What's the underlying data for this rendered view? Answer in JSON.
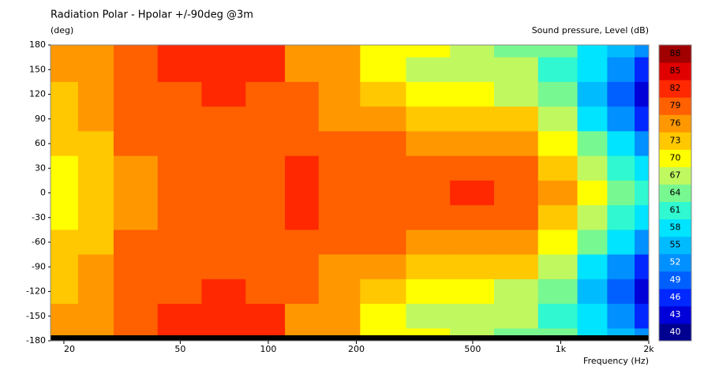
{
  "chart_data": {
    "type": "contour",
    "title": "Radiation Polar - Hpolar +/-90deg @3m",
    "ylabel": "(deg)",
    "xlabel": "Frequency  (Hz)",
    "colorbar_label": "Sound pressure, Level  (dB)",
    "log_x": true,
    "xlim": [
      18,
      2000
    ],
    "ylim": [
      -180,
      180
    ],
    "xticks": [
      20,
      50,
      100,
      200,
      500,
      {
        "value": 1000,
        "label": "1k"
      },
      {
        "value": 2000,
        "label": "2k"
      }
    ],
    "yticks": [
      180,
      150,
      120,
      90,
      60,
      30,
      0,
      -30,
      -60,
      -90,
      -120,
      -150,
      -180
    ],
    "x": [
      20,
      25,
      35,
      50,
      70,
      100,
      130,
      170,
      250,
      350,
      500,
      700,
      1000,
      1300,
      1600,
      2000
    ],
    "y": [
      180,
      150,
      120,
      90,
      60,
      30,
      0,
      -30,
      -60,
      -90,
      -120,
      -150,
      -180
    ],
    "z": [
      [
        77,
        77,
        80,
        83,
        83,
        83,
        77,
        77,
        71,
        71,
        68,
        65,
        65,
        59,
        56,
        53
      ],
      [
        77,
        77,
        80,
        83,
        83,
        83,
        77,
        77,
        71,
        68,
        68,
        68,
        62,
        59,
        53,
        47
      ],
      [
        74,
        77,
        80,
        80,
        83,
        80,
        80,
        77,
        74,
        71,
        71,
        68,
        65,
        56,
        50,
        44
      ],
      [
        74,
        77,
        80,
        80,
        80,
        80,
        80,
        77,
        77,
        74,
        74,
        74,
        68,
        59,
        53,
        47
      ],
      [
        74,
        74,
        80,
        80,
        80,
        80,
        80,
        80,
        80,
        77,
        77,
        77,
        71,
        65,
        59,
        53
      ],
      [
        71,
        74,
        77,
        80,
        80,
        80,
        83,
        80,
        80,
        80,
        80,
        80,
        74,
        68,
        62,
        59
      ],
      [
        71,
        74,
        77,
        80,
        80,
        80,
        83,
        80,
        80,
        80,
        83,
        80,
        77,
        71,
        65,
        62
      ],
      [
        71,
        74,
        77,
        80,
        80,
        80,
        83,
        80,
        80,
        80,
        80,
        80,
        74,
        68,
        62,
        59
      ],
      [
        74,
        74,
        80,
        80,
        80,
        80,
        80,
        80,
        80,
        77,
        77,
        77,
        71,
        65,
        59,
        53
      ],
      [
        74,
        77,
        80,
        80,
        80,
        80,
        80,
        77,
        77,
        74,
        74,
        74,
        68,
        59,
        53,
        47
      ],
      [
        74,
        77,
        80,
        80,
        83,
        80,
        80,
        77,
        74,
        71,
        71,
        68,
        65,
        56,
        50,
        44
      ],
      [
        77,
        77,
        80,
        83,
        83,
        83,
        77,
        77,
        71,
        68,
        68,
        68,
        62,
        59,
        53,
        47
      ],
      [
        77,
        77,
        80,
        83,
        83,
        83,
        77,
        77,
        71,
        71,
        68,
        65,
        65,
        59,
        56,
        53
      ]
    ],
    "levels": [
      40,
      43,
      46,
      49,
      52,
      55,
      58,
      61,
      64,
      67,
      70,
      73,
      76,
      79,
      82,
      85,
      88
    ],
    "colors": [
      "#000090",
      "#0000d8",
      "#0028ff",
      "#0060ff",
      "#0090ff",
      "#00bcff",
      "#00e4ff",
      "#30f8d0",
      "#78f890",
      "#c0f860",
      "#ffff00",
      "#ffc800",
      "#ff9800",
      "#ff6000",
      "#ff2800",
      "#e00000",
      "#a00000"
    ]
  }
}
